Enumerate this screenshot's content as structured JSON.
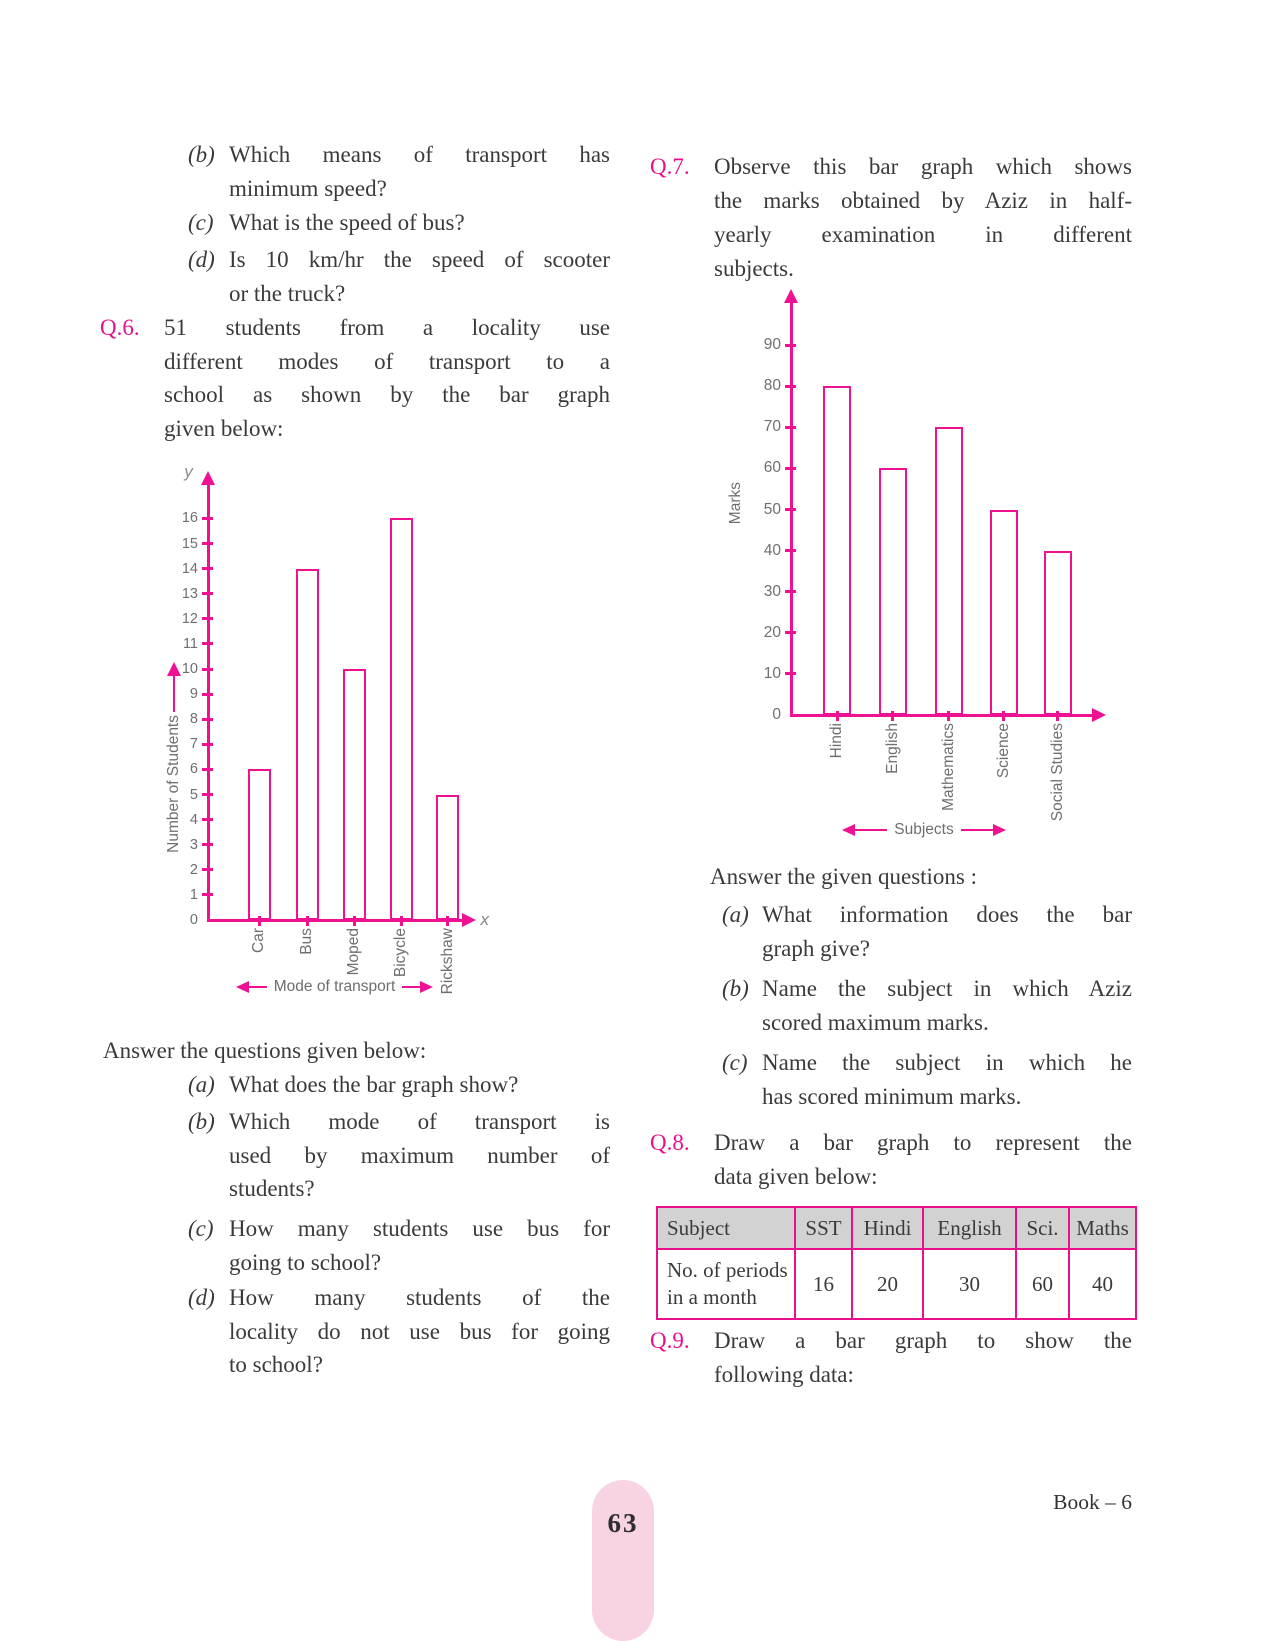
{
  "page": {
    "number": "63",
    "book_label": "Book – 6"
  },
  "left_column": {
    "intro_items": [
      {
        "marker": "(b)",
        "lines": [
          "Which means of transport has",
          "minimum speed?"
        ]
      },
      {
        "marker": "(c)",
        "lines": [
          "What is the speed of bus?"
        ]
      },
      {
        "marker": "(d)",
        "lines": [
          "Is 10 km/hr the speed of scooter",
          "or the truck?"
        ]
      }
    ],
    "q6": {
      "label": "Q.6.",
      "lines": [
        "51 students from a locality use",
        "different modes of transport to a",
        "school as shown by the bar graph",
        "given below:"
      ]
    },
    "answer_heading": "Answer the questions given below:",
    "answer_items": [
      {
        "marker": "(a)",
        "lines": [
          "What does the bar graph show?"
        ]
      },
      {
        "marker": "(b)",
        "lines": [
          "Which mode of transport is",
          "used by maximum number of",
          "students?"
        ]
      },
      {
        "marker": "(c)",
        "lines": [
          "How many students use bus for",
          "going to school?"
        ]
      },
      {
        "marker": "(d)",
        "lines": [
          "How many students of the",
          "locality do not use bus for going",
          "to school?"
        ]
      }
    ]
  },
  "right_column": {
    "q7": {
      "label": "Q.7.",
      "lines": [
        "Observe this bar graph which shows",
        "the marks obtained by Aziz in half-",
        "yearly examination in different",
        "subjects."
      ]
    },
    "answer_heading": "Answer the given questions :",
    "answer_items": [
      {
        "marker": "(a)",
        "lines": [
          "What information does the bar",
          "graph give?"
        ]
      },
      {
        "marker": "(b)",
        "lines": [
          "Name the subject in which Aziz",
          "scored maximum marks."
        ]
      },
      {
        "marker": "(c)",
        "lines": [
          "Name the subject in which he",
          "has scored minimum marks."
        ]
      }
    ],
    "q8": {
      "label": "Q.8.",
      "lines": [
        "Draw a bar graph to represent the",
        "data given below:"
      ]
    },
    "table": {
      "header": [
        "Subject",
        "SST",
        "Hindi",
        "English",
        "Sci.",
        "Maths"
      ],
      "row_label": "No. of periods in a month",
      "values": [
        "16",
        "20",
        "30",
        "60",
        "40"
      ]
    },
    "q9": {
      "label": "Q.9.",
      "lines": [
        "Draw a bar graph to show the",
        "following data:"
      ]
    }
  },
  "chart_data": [
    {
      "type": "bar",
      "categories": [
        "Car",
        "Bus",
        "Moped",
        "Bicycle",
        "Rickshaw"
      ],
      "values": [
        6,
        14,
        10,
        16,
        5
      ],
      "title": "",
      "xlabel": "Mode of transport",
      "ylabel": "Number of Students",
      "y_axis_letter": "y",
      "x_axis_letter": "x",
      "ylim": [
        0,
        16
      ],
      "ytick_step": 1,
      "bar_fill": "#ffffff",
      "bar_border": "#ee1191",
      "grid": false,
      "legend": "none"
    },
    {
      "type": "bar",
      "categories": [
        "Hindi",
        "English",
        "Mathematics",
        "Science",
        "Social Studies"
      ],
      "values": [
        80,
        60,
        70,
        50,
        40
      ],
      "title": "",
      "xlabel": "Subjects",
      "ylabel": "Marks",
      "ylim": [
        0,
        90
      ],
      "ytick_step": 10,
      "bar_fill": "#ffffff",
      "bar_border": "#ee1191",
      "grid": false,
      "legend": "none"
    }
  ]
}
